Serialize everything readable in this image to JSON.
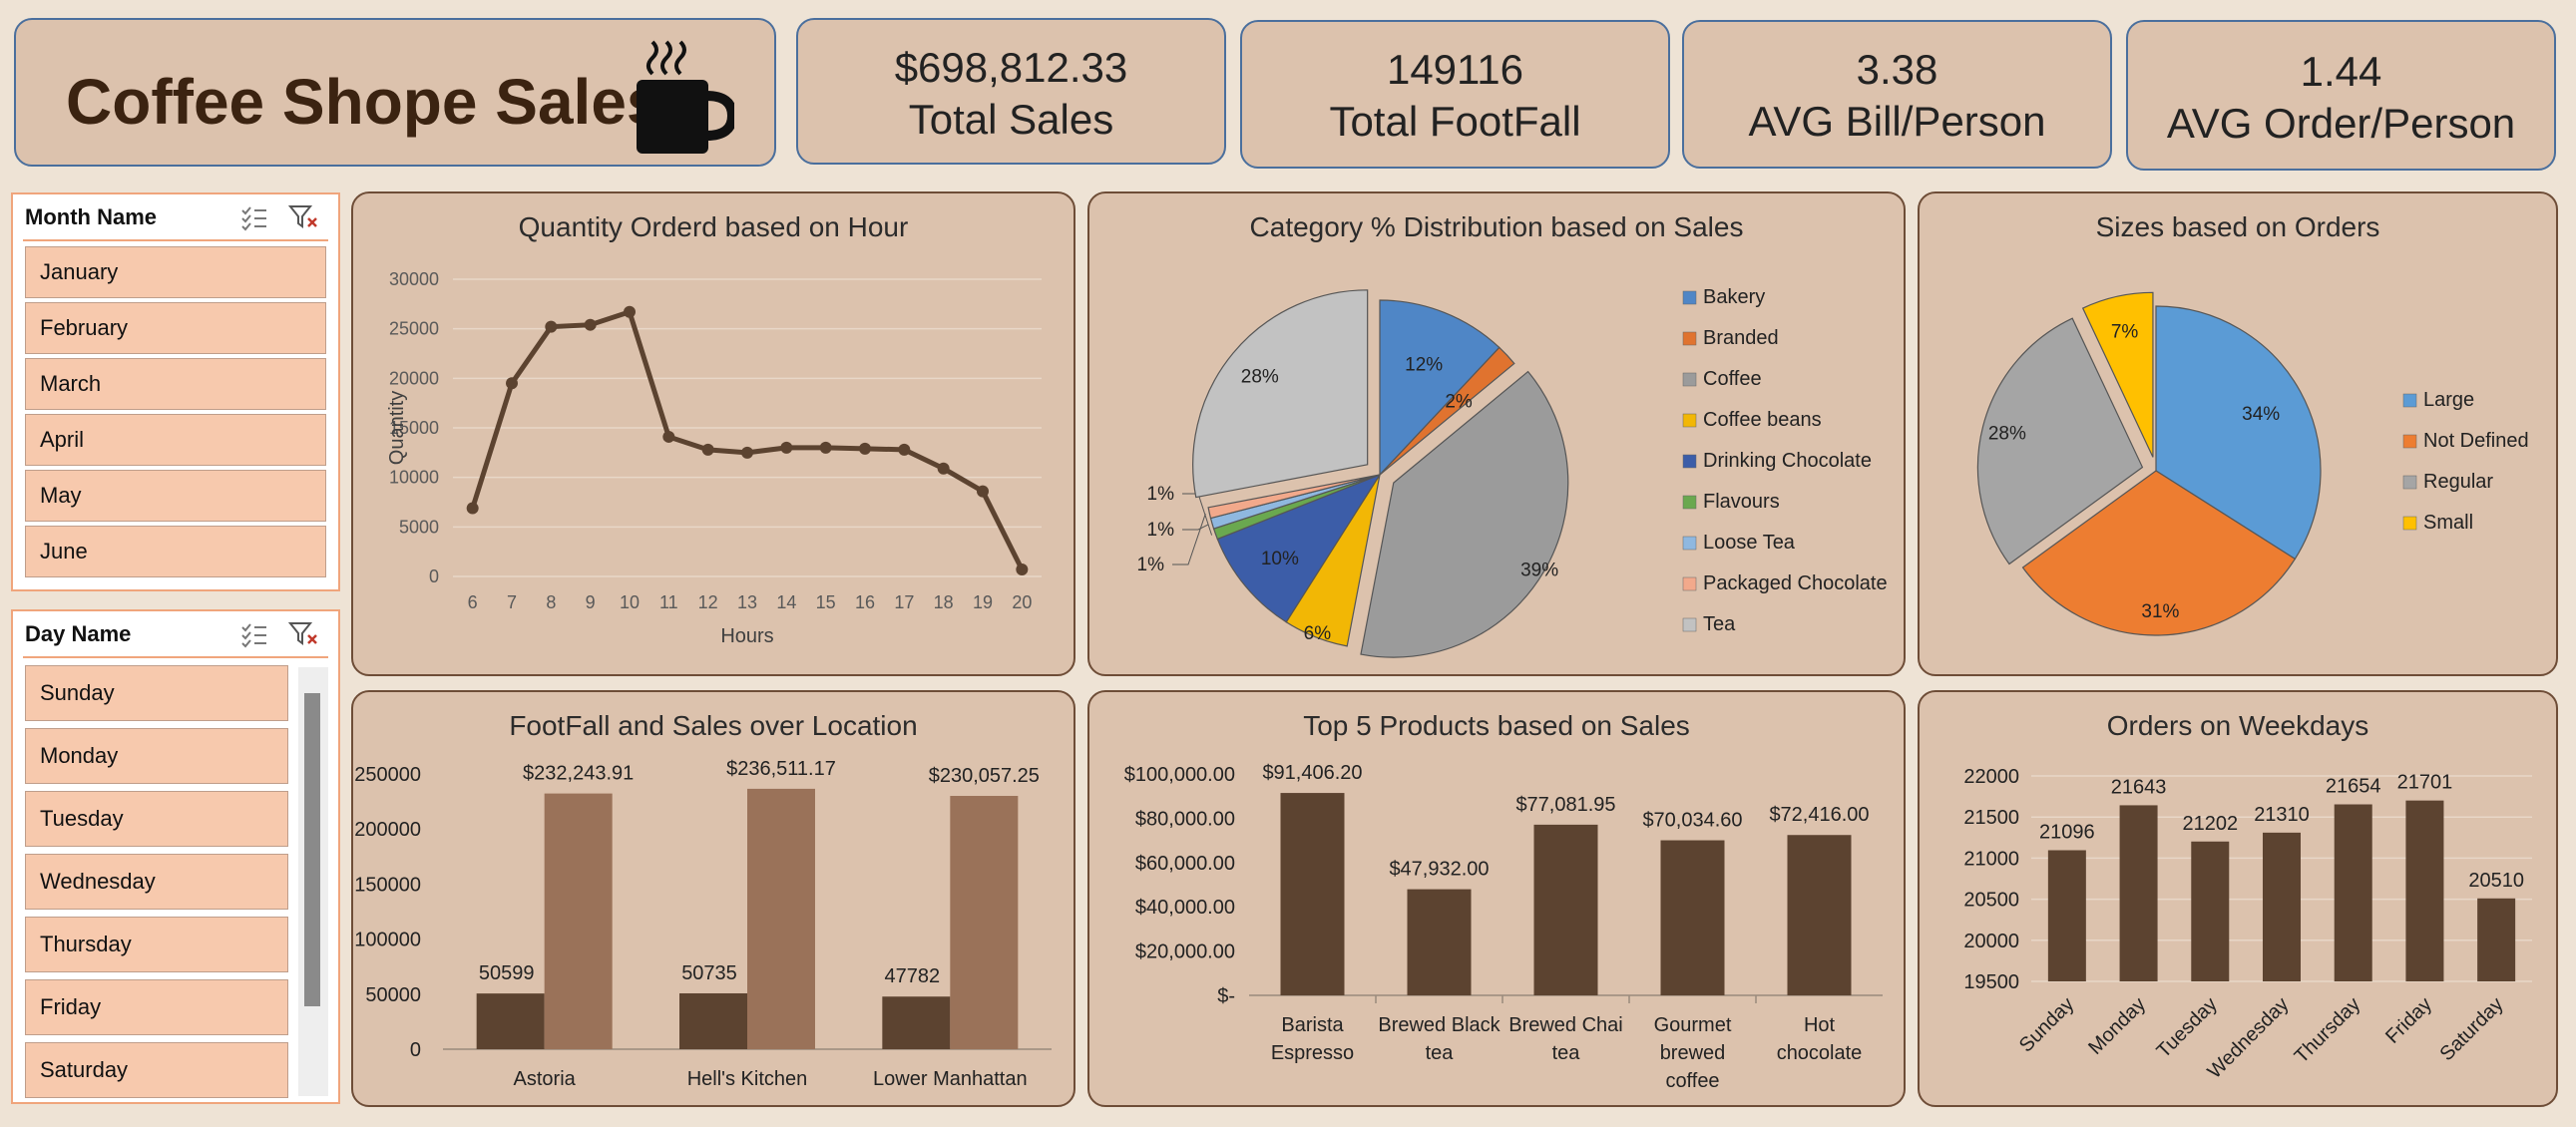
{
  "header": {
    "title": "Coffee Shope Sales"
  },
  "kpis": [
    {
      "value": "$698,812.33",
      "label": "Total Sales"
    },
    {
      "value": "149116",
      "label": "Total FootFall"
    },
    {
      "value": "3.38",
      "label": "AVG Bill/Person"
    },
    {
      "value": "1.44",
      "label": "AVG Order/Person"
    }
  ],
  "slicers": {
    "month": {
      "title": "Month Name",
      "items": [
        "January",
        "February",
        "March",
        "April",
        "May",
        "June"
      ]
    },
    "day": {
      "title": "Day Name",
      "items": [
        "Sunday",
        "Monday",
        "Tuesday",
        "Wednesday",
        "Thursday",
        "Friday",
        "Saturday"
      ]
    }
  },
  "colors": {
    "brown_dark": "#5c4330",
    "brown_light": "#9a7259",
    "panel": "#dcc2ad",
    "slicer_item": "#f7c9ad",
    "kpi_border": "#4a6f9d"
  },
  "chart_data": [
    {
      "type": "line",
      "title": "Quantity Orderd based on Hour",
      "xlabel": "Hours",
      "ylabel": "Quantity",
      "x": [
        6,
        7,
        8,
        9,
        10,
        11,
        12,
        13,
        14,
        15,
        16,
        17,
        18,
        19,
        20
      ],
      "values": [
        6900,
        19500,
        25200,
        25400,
        26700,
        14100,
        12800,
        12500,
        13000,
        13000,
        12900,
        12800,
        10900,
        8600,
        700
      ],
      "ylim": [
        0,
        30000
      ],
      "yticks": [
        0,
        5000,
        10000,
        15000,
        20000,
        25000,
        30000
      ],
      "grid": true
    },
    {
      "type": "pie",
      "title": "Category % Distribution based on Sales",
      "legend_position": "right",
      "categories": [
        "Bakery",
        "Branded",
        "Coffee",
        "Coffee beans",
        "Drinking Chocolate",
        "Flavours",
        "Loose Tea",
        "Packaged Chocolate",
        "Tea"
      ],
      "values": [
        12,
        2,
        39,
        6,
        10,
        1,
        1,
        1,
        28
      ],
      "labels": [
        "12%",
        "2%",
        "39%",
        "6%",
        "10%",
        "1%",
        "1%",
        "1%",
        "28%"
      ],
      "colors": [
        "#4f86c6",
        "#e0732f",
        "#9b9b9b",
        "#f2b705",
        "#3c5da8",
        "#6aa84f",
        "#8fb8e0",
        "#f2a98b",
        "#c2c2c2"
      ]
    },
    {
      "type": "pie",
      "title": "Sizes based on Orders",
      "legend_position": "right",
      "categories": [
        "Large",
        "Not Defined",
        "Regular",
        "Small"
      ],
      "values": [
        34,
        31,
        28,
        7
      ],
      "labels": [
        "34%",
        "31%",
        "28%",
        "7%"
      ],
      "colors": [
        "#5b9bd5",
        "#ed7d31",
        "#a5a5a5",
        "#ffc000"
      ]
    },
    {
      "type": "bar",
      "title": "FootFall and Sales over Location",
      "categories": [
        "Astoria",
        "Hell's Kitchen",
        "Lower Manhattan"
      ],
      "series": [
        {
          "values": [
            50599,
            50735,
            47782
          ],
          "labels": [
            "50599",
            "50735",
            "47782"
          ]
        },
        {
          "values": [
            232243.91,
            236511.17,
            230057.25
          ],
          "labels": [
            "$232,243.91",
            "$236,511.17",
            "$230,057.25"
          ]
        }
      ],
      "ylim": [
        0,
        250000
      ],
      "yticks": [
        0,
        50000,
        100000,
        150000,
        200000,
        250000
      ]
    },
    {
      "type": "bar",
      "title": "Top 5 Products based on Sales",
      "categories": [
        [
          "Barista",
          "Espresso"
        ],
        [
          "Brewed Black",
          "tea"
        ],
        [
          "Brewed Chai",
          "tea"
        ],
        [
          "Gourmet",
          "brewed",
          "coffee"
        ],
        [
          "Hot",
          "chocolate"
        ]
      ],
      "values": [
        91406.2,
        47932.0,
        77081.95,
        70034.6,
        72416.0
      ],
      "labels": [
        "$91,406.20",
        "$47,932.00",
        "$77,081.95",
        "$70,034.60",
        "$72,416.00"
      ],
      "ylim": [
        0,
        100000
      ],
      "ytick_labels": [
        "$-",
        "$20,000.00",
        "$40,000.00",
        "$60,000.00",
        "$80,000.00",
        "$100,000.00"
      ]
    },
    {
      "type": "bar",
      "title": "Orders on Weekdays",
      "categories": [
        "Sunday",
        "Monday",
        "Tuesday",
        "Wednesday",
        "Thursday",
        "Friday",
        "Saturday"
      ],
      "values": [
        21096,
        21643,
        21202,
        21310,
        21654,
        21701,
        20510
      ],
      "ylim": [
        19500,
        22000
      ],
      "yticks": [
        19500,
        20000,
        20500,
        21000,
        21500,
        22000
      ]
    }
  ]
}
